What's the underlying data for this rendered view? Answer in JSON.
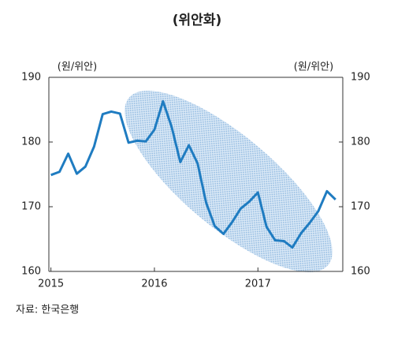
{
  "chart_data": {
    "type": "line",
    "title": "(위안화)",
    "y_label": "(원/위안)",
    "y2_label": "(원/위안)",
    "source": "자료: 한국은행",
    "x": [
      2015,
      2015.083,
      2015.167,
      2015.25,
      2015.333,
      2015.417,
      2015.5,
      2015.583,
      2015.667,
      2015.75,
      2015.833,
      2015.917,
      2016,
      2016.083,
      2016.167,
      2016.25,
      2016.333,
      2016.417,
      2016.5,
      2016.583,
      2016.667,
      2016.75,
      2016.833,
      2016.917,
      2017,
      2017.083,
      2017.167,
      2017.25,
      2017.333,
      2017.417,
      2017.5,
      2017.583,
      2017.667,
      2017.75
    ],
    "series": [
      {
        "name": "원/위안",
        "color": "#1f7cc1",
        "values": [
          174.9,
          175.4,
          178.2,
          175.1,
          176.2,
          179.3,
          184.3,
          184.7,
          184.4,
          179.9,
          180.2,
          180.1,
          181.9,
          186.3,
          182.3,
          176.9,
          179.5,
          176.7,
          170.6,
          167.0,
          165.8,
          167.6,
          169.7,
          170.8,
          172.2,
          166.9,
          164.8,
          164.7,
          163.7,
          165.9,
          167.5,
          169.3,
          172.4,
          171.1
        ]
      }
    ],
    "xlim": [
      2014.98,
      2017.82
    ],
    "xticks": [
      2015,
      2016,
      2017
    ],
    "ylim": [
      160,
      190
    ],
    "yticks": [
      160,
      170,
      180,
      190
    ],
    "y2lim": [
      160,
      190
    ],
    "y2ticks": [
      160,
      170,
      180,
      190
    ]
  }
}
